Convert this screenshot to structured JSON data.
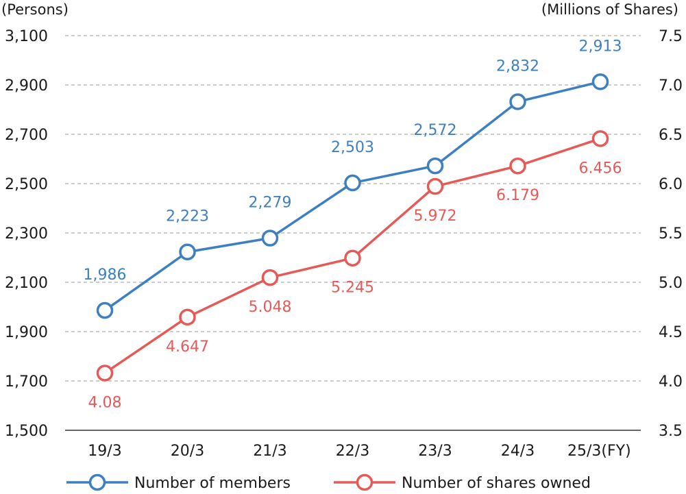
{
  "chart_data": {
    "type": "line",
    "categories": [
      "19/3",
      "20/3",
      "21/3",
      "22/3",
      "23/3",
      "24/3",
      "25/3(FY)"
    ],
    "y_left": {
      "unit_label": "(Persons)",
      "ticks": [
        "3,100",
        "2,900",
        "2,700",
        "2,500",
        "2,300",
        "2,100",
        "1,900",
        "1,700",
        "1,500"
      ],
      "range": [
        1500,
        3100
      ]
    },
    "y_right": {
      "unit_label": "(Millions of Shares)",
      "ticks": [
        "7.5",
        "7.0",
        "6.5",
        "6.0",
        "5.5",
        "5.0",
        "4.5",
        "4.0",
        "3.5"
      ],
      "range": [
        3.5,
        7.5
      ]
    },
    "grid": "horizontal dashed",
    "legend_position": "bottom",
    "series": [
      {
        "name": "Number of members",
        "axis": "left",
        "color": "#3d7fc1",
        "values": [
          1986,
          2223,
          2279,
          2503,
          2572,
          2832,
          2913
        ],
        "labels": [
          "1,986",
          "2,223",
          "2,279",
          "2,503",
          "2,572",
          "2,832",
          "2,913"
        ],
        "label_side": "above"
      },
      {
        "name": "Number of shares owned",
        "axis": "right",
        "color": "#e55a57",
        "values": [
          4.08,
          4.647,
          5.048,
          5.245,
          5.972,
          6.179,
          6.456
        ],
        "labels": [
          "4.08",
          "4.647",
          "5.048",
          "5.245",
          "5.972",
          "6.179",
          "6.456"
        ],
        "label_side": "below"
      }
    ]
  }
}
